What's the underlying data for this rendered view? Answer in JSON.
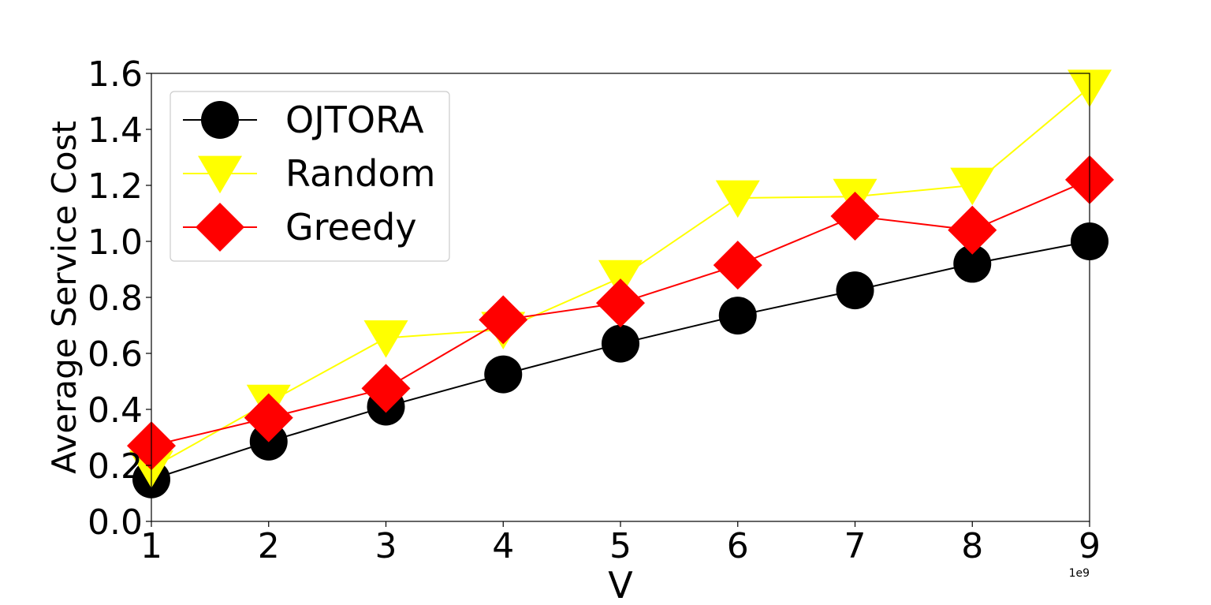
{
  "chart_data": {
    "type": "line",
    "title": "",
    "xlabel": "V",
    "ylabel": "Average Service Cost",
    "x_offset_label": "1e9",
    "x": [
      1,
      2,
      3,
      4,
      5,
      6,
      7,
      8,
      9
    ],
    "xlim": [
      1,
      9
    ],
    "ylim": [
      0.0,
      1.6
    ],
    "x_ticks": [
      "1",
      "2",
      "3",
      "4",
      "5",
      "6",
      "7",
      "8",
      "9"
    ],
    "y_ticks": [
      "0.0",
      "0.2",
      "0.4",
      "0.6",
      "0.8",
      "1.0",
      "1.2",
      "1.4",
      "1.6"
    ],
    "grid": false,
    "legend_position": "top-left",
    "series": [
      {
        "name": "OJTORA",
        "color": "#000000",
        "marker": "circle",
        "values": [
          0.15,
          0.285,
          0.41,
          0.525,
          0.635,
          0.735,
          0.825,
          0.92,
          1.0
        ]
      },
      {
        "name": "Random",
        "color": "#ffff00",
        "marker": "triangle-down",
        "values": [
          0.19,
          0.425,
          0.655,
          0.685,
          0.87,
          1.155,
          1.16,
          1.2,
          1.55
        ]
      },
      {
        "name": "Greedy",
        "color": "#ff0000",
        "marker": "diamond",
        "values": [
          0.27,
          0.37,
          0.475,
          0.72,
          0.78,
          0.915,
          1.09,
          1.04,
          1.22
        ]
      }
    ]
  }
}
